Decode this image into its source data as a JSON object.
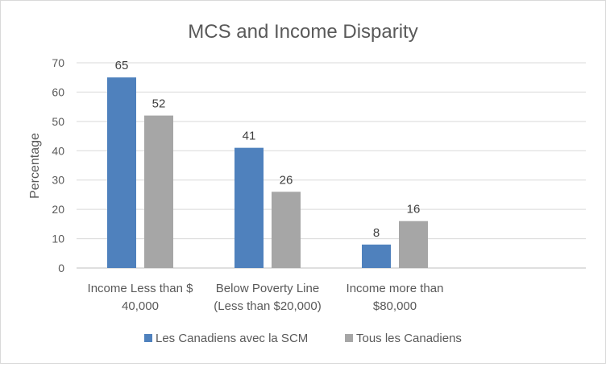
{
  "chart_data": {
    "type": "bar",
    "title": "MCS and Income Disparity",
    "xlabel": "",
    "ylabel": "Percentage",
    "ylim": [
      0,
      70
    ],
    "yticks": [
      0,
      10,
      20,
      30,
      40,
      50,
      60,
      70
    ],
    "grid": true,
    "legend_position": "bottom",
    "categories": [
      [
        "Income Less than $",
        "40,000"
      ],
      [
        "Below Poverty Line",
        "(Less than $20,000)"
      ],
      [
        "Income more than",
        "$80,000"
      ],
      []
    ],
    "series": [
      {
        "name": "Les Canadiens avec la SCM",
        "color": "#4f81bd",
        "values": [
          65,
          41,
          8,
          null
        ]
      },
      {
        "name": "Tous les Canadiens",
        "color": "#a6a6a6",
        "values": [
          52,
          26,
          16,
          null
        ]
      }
    ]
  }
}
